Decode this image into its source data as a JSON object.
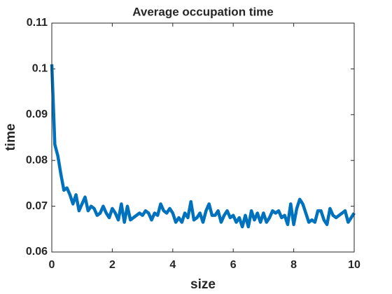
{
  "chart_data": {
    "type": "line",
    "title": "Average occupation time",
    "xlabel": "size",
    "ylabel": "time",
    "x": [
      0,
      0.1,
      0.2,
      0.3,
      0.4,
      0.5,
      0.6,
      0.7,
      0.8,
      0.9,
      1,
      1.1,
      1.2,
      1.3,
      1.4,
      1.5,
      1.6,
      1.7,
      1.8,
      1.9,
      2,
      2.1,
      2.2,
      2.3,
      2.4,
      2.5,
      2.6,
      2.7,
      2.8,
      2.9,
      3,
      3.1,
      3.2,
      3.3,
      3.4,
      3.5,
      3.6,
      3.7,
      3.8,
      3.9,
      4,
      4.1,
      4.2,
      4.3,
      4.4,
      4.5,
      4.6,
      4.7,
      4.8,
      4.9,
      5,
      5.1,
      5.2,
      5.3,
      5.4,
      5.5,
      5.6,
      5.7,
      5.8,
      5.9,
      6,
      6.1,
      6.2,
      6.3,
      6.4,
      6.5,
      6.6,
      6.7,
      6.8,
      6.9,
      7,
      7.1,
      7.2,
      7.3,
      7.4,
      7.5,
      7.6,
      7.7,
      7.8,
      7.9,
      8,
      8.1,
      8.2,
      8.3,
      8.4,
      8.5,
      8.6,
      8.7,
      8.8,
      8.9,
      9,
      9.1,
      9.2,
      9.3,
      9.4,
      9.5,
      9.6,
      9.7,
      9.8,
      9.9,
      10
    ],
    "series": [
      {
        "color": "#0072bd",
        "values": [
          0.101,
          0.0835,
          0.081,
          0.077,
          0.0735,
          0.074,
          0.0725,
          0.0705,
          0.0725,
          0.069,
          0.0705,
          0.072,
          0.069,
          0.07,
          0.0695,
          0.068,
          0.0685,
          0.07,
          0.0685,
          0.0675,
          0.0695,
          0.0685,
          0.067,
          0.0705,
          0.0665,
          0.07,
          0.067,
          0.0675,
          0.068,
          0.0685,
          0.068,
          0.069,
          0.0685,
          0.067,
          0.0685,
          0.068,
          0.0705,
          0.069,
          0.0685,
          0.0695,
          0.0685,
          0.0665,
          0.0675,
          0.0665,
          0.0685,
          0.0675,
          0.071,
          0.067,
          0.0675,
          0.0685,
          0.0665,
          0.069,
          0.0705,
          0.068,
          0.068,
          0.069,
          0.0665,
          0.068,
          0.069,
          0.0675,
          0.068,
          0.0665,
          0.0675,
          0.0655,
          0.068,
          0.0655,
          0.069,
          0.067,
          0.0685,
          0.0665,
          0.0685,
          0.0665,
          0.0675,
          0.069,
          0.0685,
          0.069,
          0.0675,
          0.068,
          0.066,
          0.0705,
          0.066,
          0.0695,
          0.0715,
          0.0705,
          0.0685,
          0.0665,
          0.067,
          0.0665,
          0.069,
          0.069,
          0.067,
          0.066,
          0.0695,
          0.068,
          0.0675,
          0.068,
          0.0685,
          0.069,
          0.0665,
          0.0675,
          0.0685
        ]
      }
    ],
    "xlim": [
      0,
      10
    ],
    "xticks": [
      0,
      2,
      4,
      6,
      8,
      10
    ],
    "ylim": [
      0.06,
      0.11
    ],
    "yticks": [
      0.06,
      0.07,
      0.08,
      0.09,
      0.1,
      0.11
    ]
  }
}
